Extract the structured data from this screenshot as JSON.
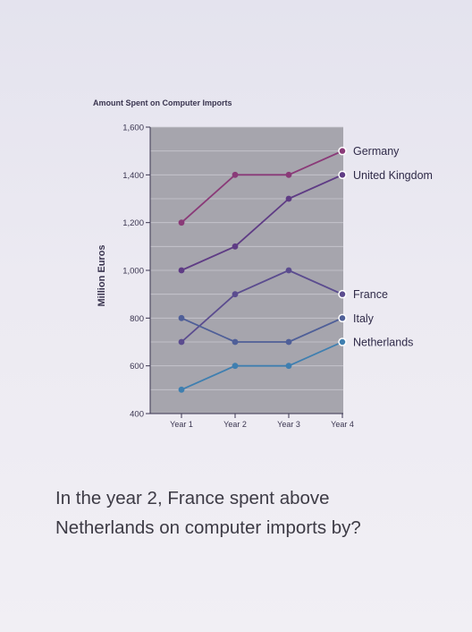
{
  "chart_data": {
    "type": "line",
    "title": "Amount Spent on Computer Imports",
    "ylabel": "Million Euros",
    "xlabel": "",
    "categories": [
      "Year 1",
      "Year 2",
      "Year 3",
      "Year 4"
    ],
    "ylim": [
      400,
      1600
    ],
    "yticks": [
      1600,
      1400,
      1200,
      1000,
      800,
      600,
      400
    ],
    "ytick_labels": [
      "1,600",
      "1,400",
      "1,200",
      "1,000",
      "800",
      "600",
      "400"
    ],
    "legend_placement": "right, beside line ends",
    "grid": true,
    "series": [
      {
        "name": "Germany",
        "values": [
          1200,
          1400,
          1400,
          1500
        ],
        "color": "#8a3a78"
      },
      {
        "name": "United Kingdom",
        "values": [
          1000,
          1100,
          1300,
          1400
        ],
        "color": "#5f3c85"
      },
      {
        "name": "France",
        "values": [
          700,
          900,
          1000,
          900
        ],
        "color": "#5b4c8f"
      },
      {
        "name": "Italy",
        "values": [
          800,
          700,
          700,
          800
        ],
        "color": "#4f5f98"
      },
      {
        "name": "Netherlands",
        "values": [
          500,
          600,
          600,
          700
        ],
        "color": "#3f7fb0"
      }
    ]
  },
  "question": {
    "line1": "In the year 2, France spent above",
    "line2": "Netherlands on computer imports by?"
  }
}
